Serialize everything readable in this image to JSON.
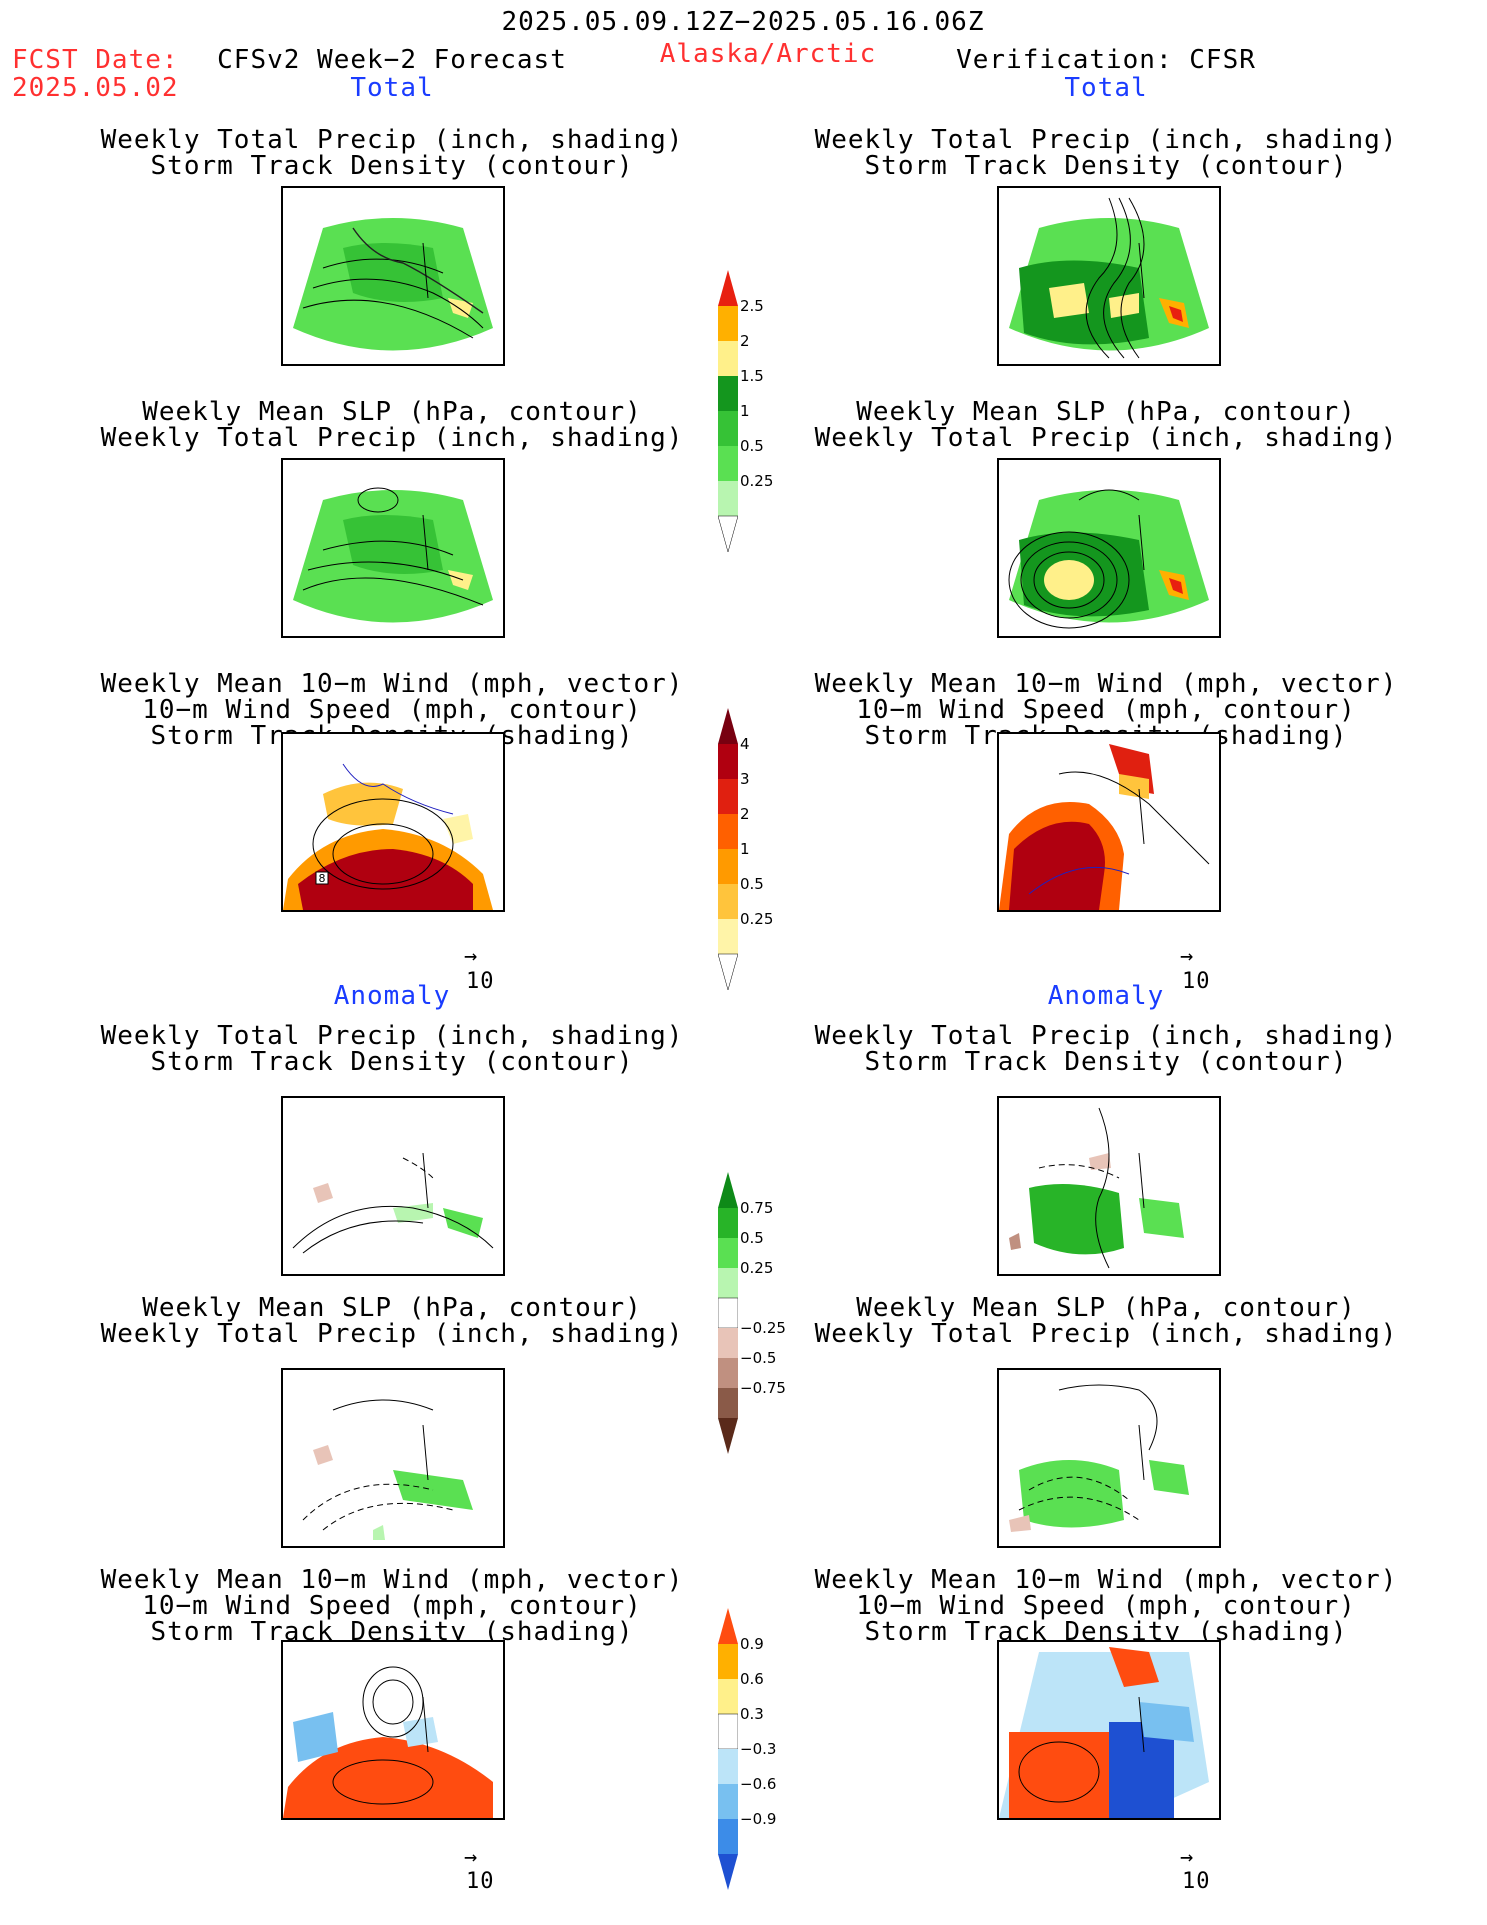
{
  "header": {
    "period": "2025.05.09.12Z−2025.05.16.06Z",
    "fcst_label": "FCST Date:",
    "fcst_date": "2025.05.02",
    "model": "CFSv2 Week−2 Forecast",
    "region": "Alaska/Arctic",
    "verification": "Verification: CFSR"
  },
  "sections": {
    "total": "Total",
    "anomaly": "Anomaly"
  },
  "panel_titles": {
    "precip_storm": [
      "Weekly Total Precip (inch, shading)",
      "Storm Track Density (contour)"
    ],
    "slp_precip": [
      "Weekly Mean SLP (hPa, contour)",
      "Weekly Total Precip (inch, shading)"
    ],
    "wind_storm": [
      "Weekly Mean 10−m Wind (mph, vector)",
      "10−m Wind Speed (mph, contour)",
      "Storm Track Density (shading)"
    ]
  },
  "vector_ref": "10",
  "map_label": "8",
  "colorbars": [
    {
      "id": "precip_total",
      "colors": [
        "#ffffff",
        "#b8f5b0",
        "#5ae052",
        "#36c236",
        "#14961e",
        "#fff08a",
        "#ffb000",
        "#e82010"
      ],
      "labels": [
        "0.25",
        "0.5",
        "1",
        "1.5",
        "2",
        "2.5"
      ]
    },
    {
      "id": "storm_total",
      "colors": [
        "#ffffff",
        "#fff4a8",
        "#ffc43c",
        "#ff9a00",
        "#ff6000",
        "#e02010",
        "#b00010",
        "#780010"
      ],
      "labels": [
        "0.25",
        "0.5",
        "1",
        "2",
        "3",
        "4"
      ]
    },
    {
      "id": "precip_anom",
      "colors": [
        "#5a2a1a",
        "#8a5a48",
        "#c09080",
        "#e8c4b8",
        "#ffffff",
        "#b8f5b0",
        "#5ae052",
        "#28b428",
        "#0e8a18"
      ],
      "labels": [
        "0.75",
        "0.5",
        "0.25",
        "−0.25",
        "−0.5",
        "−0.75"
      ]
    },
    {
      "id": "storm_anom",
      "colors": [
        "#1e50d2",
        "#3c8ce8",
        "#78c0f0",
        "#bce4f8",
        "#ffffff",
        "#fff08a",
        "#ffb000",
        "#ff4c10"
      ],
      "labels": [
        "0.9",
        "0.6",
        "0.3",
        "−0.3",
        "−0.6",
        "−0.9"
      ]
    }
  ]
}
